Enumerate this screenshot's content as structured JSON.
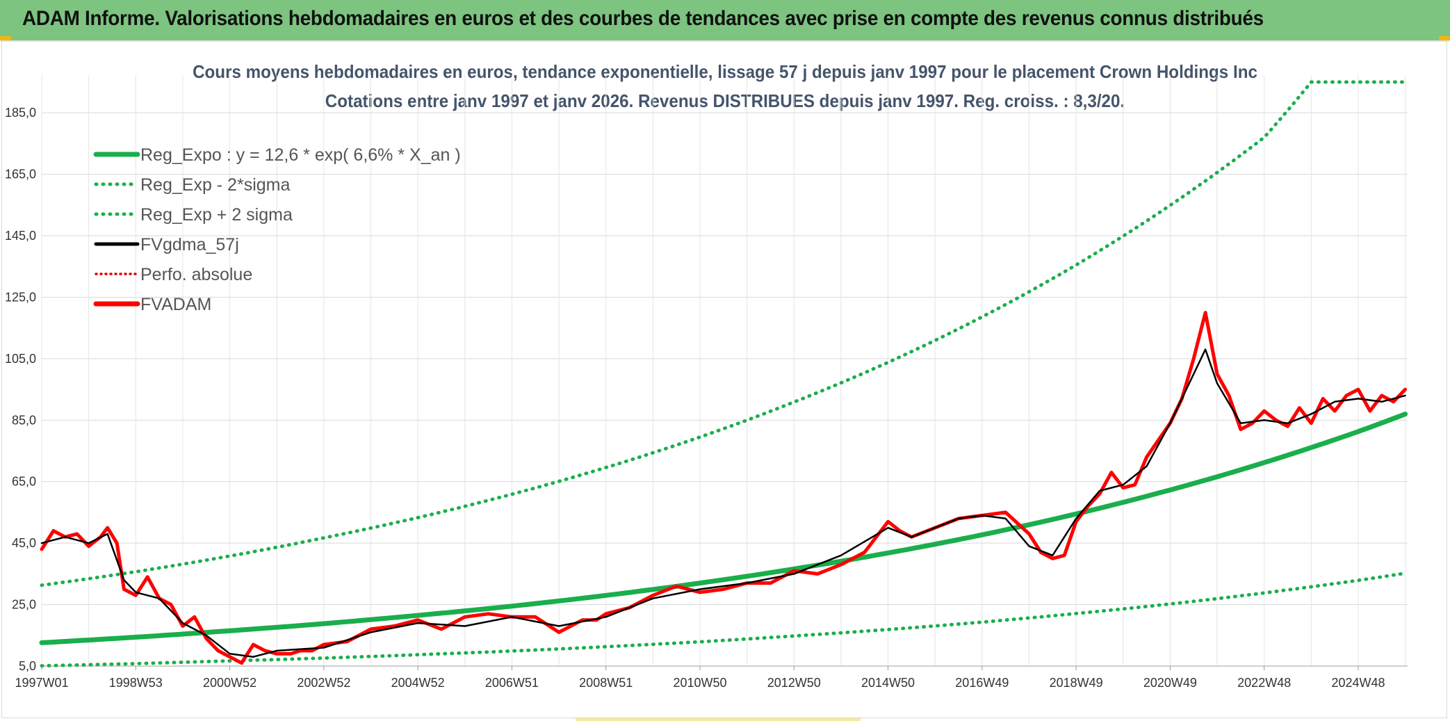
{
  "header": {
    "title": "ADAM Informe. Valorisations hebdomadaires en euros et des courbes de tendances avec prise en compte des revenus connus distribués"
  },
  "chart_data": {
    "type": "line",
    "title": "Cours moyens hebdomadaires en euros, tendance exponentielle, lissage 57 j depuis janv 1997 pour le placement Crown Holdings Inc",
    "subtitle": "Cotations entre janv 1997 et janv 2026. Revenus DISTRIBUES depuis janv 1997. Reg. croiss. : 8,3/20.",
    "xlabel": "",
    "ylabel": "",
    "ylim": [
      5,
      195
    ],
    "xlim": [
      1997.0,
      2026.05
    ],
    "y_ticks": [
      "185,0",
      "165,0",
      "145,0",
      "125,0",
      "105,0",
      "85,0",
      "65,0",
      "45,0",
      "25,0",
      "5,0"
    ],
    "y_tick_values": [
      185,
      165,
      145,
      125,
      105,
      85,
      65,
      45,
      25,
      5
    ],
    "x_ticks": [
      "1997W01",
      "1998W53",
      "2000W52",
      "2002W52",
      "2004W52",
      "2006W51",
      "2008W51",
      "2010W50",
      "2012W50",
      "2014W50",
      "2016W49",
      "2018W49",
      "2020W49",
      "2022W48",
      "2024W48"
    ],
    "x_tick_years": [
      1997.0,
      1999.0,
      2001.0,
      2003.0,
      2005.0,
      2007.0,
      2009.0,
      2011.0,
      2013.0,
      2015.0,
      2017.0,
      2019.0,
      2021.0,
      2023.0,
      2025.0
    ],
    "grid": true,
    "legend_position": "top-left",
    "legend": [
      {
        "name": "Reg_Expo : y = 12,6 * exp( 6,6% *  X_an )",
        "color": "#1aae4c",
        "style": "solid-thick"
      },
      {
        "name": "Reg_Exp - 2*sigma",
        "color": "#1aae4c",
        "style": "dotted"
      },
      {
        "name": "Reg_Exp + 2 sigma",
        "color": "#1aae4c",
        "style": "dotted"
      },
      {
        "name": "FVgdma_57j",
        "color": "#000000",
        "style": "solid"
      },
      {
        "name": "Perfo. absolue",
        "color": "#e00000",
        "style": "dotted"
      },
      {
        "name": "FVADAM",
        "color": "#ff0000",
        "style": "solid-thick"
      }
    ],
    "series": [
      {
        "name": "Reg_Expo : y = 12,6 * exp( 6,6% *  X_an )",
        "color": "#1aae4c",
        "x": [
          1997.0,
          1999.0,
          2001.0,
          2003.0,
          2005.0,
          2007.0,
          2009.0,
          2011.0,
          2013.0,
          2015.0,
          2017.0,
          2019.0,
          2021.0,
          2023.0,
          2025.0,
          2026.0
        ],
        "values": [
          12.6,
          14.4,
          16.5,
          18.8,
          21.5,
          24.5,
          28.0,
          32.0,
          36.6,
          41.8,
          47.7,
          54.5,
          62.3,
          71.2,
          81.3,
          87.0
        ]
      },
      {
        "name": "Reg_Exp - 2*sigma",
        "color": "#1aae4c",
        "x": [
          1997.0,
          1999.0,
          2001.0,
          2003.0,
          2005.0,
          2007.0,
          2009.0,
          2011.0,
          2013.0,
          2015.0,
          2017.0,
          2019.0,
          2021.0,
          2023.0,
          2025.0,
          2026.0
        ],
        "values": [
          5.1,
          5.8,
          6.7,
          7.6,
          8.7,
          9.9,
          11.3,
          12.9,
          14.8,
          16.9,
          19.3,
          22.1,
          25.2,
          28.8,
          32.9,
          35.2
        ]
      },
      {
        "name": "Reg_Exp + 2 sigma",
        "color": "#1aae4c",
        "x": [
          1997.0,
          1999.0,
          2001.0,
          2003.0,
          2005.0,
          2007.0,
          2009.0,
          2011.0,
          2013.0,
          2015.0,
          2017.0,
          2019.0,
          2021.0,
          2023.0,
          2024.0,
          2026.0
        ],
        "values": [
          31.3,
          35.7,
          40.8,
          46.7,
          53.3,
          60.9,
          69.6,
          79.5,
          90.9,
          103.8,
          118.6,
          135.5,
          154.9,
          177.0,
          195.0,
          195.0
        ]
      },
      {
        "name": "FVADAM",
        "color": "#ff0000",
        "x": [
          1997.0,
          1997.25,
          1997.5,
          1997.75,
          1998.0,
          1998.25,
          1998.4,
          1998.6,
          1998.75,
          1999.0,
          1999.25,
          1999.5,
          1999.75,
          2000.0,
          2000.25,
          2000.5,
          2000.75,
          2001.0,
          2001.25,
          2001.5,
          2001.75,
          2002.0,
          2002.3,
          2002.5,
          2002.75,
          2003.0,
          2003.5,
          2004.0,
          2004.5,
          2005.0,
          2005.5,
          2006.0,
          2006.5,
          2007.0,
          2007.5,
          2008.0,
          2008.5,
          2008.8,
          2009.0,
          2009.5,
          2010.0,
          2010.5,
          2011.0,
          2011.5,
          2012.0,
          2012.5,
          2013.0,
          2013.5,
          2014.0,
          2014.5,
          2015.0,
          2015.25,
          2015.5,
          2016.0,
          2016.5,
          2017.0,
          2017.5,
          2018.0,
          2018.25,
          2018.5,
          2018.75,
          2019.0,
          2019.25,
          2019.5,
          2019.75,
          2020.0,
          2020.25,
          2020.5,
          2021.0,
          2021.25,
          2021.5,
          2021.75,
          2022.0,
          2022.25,
          2022.5,
          2022.75,
          2023.0,
          2023.25,
          2023.5,
          2023.75,
          2024.0,
          2024.25,
          2024.5,
          2024.75,
          2025.0,
          2025.25,
          2025.5,
          2025.75,
          2026.0
        ],
        "values": [
          43,
          49,
          47,
          48,
          44,
          47,
          50,
          45,
          30,
          28,
          34,
          27,
          25,
          18,
          21,
          14,
          10,
          8,
          6,
          12,
          10,
          9,
          9,
          10,
          10,
          12,
          13,
          17,
          18,
          20,
          17,
          21,
          22,
          21,
          21,
          16,
          20,
          20,
          22,
          24,
          28,
          31,
          29,
          30,
          32,
          32,
          36,
          35,
          38,
          42,
          52,
          49,
          47,
          50,
          53,
          54,
          55,
          48,
          42,
          40,
          41,
          52,
          57,
          61,
          68,
          63,
          64,
          73,
          84,
          92,
          105,
          120,
          100,
          93,
          82,
          84,
          88,
          85,
          83,
          89,
          84,
          92,
          88,
          93,
          95,
          88,
          93,
          91,
          95
        ]
      },
      {
        "name": "FVgdma_57j",
        "color": "#000000",
        "x": [
          1997.0,
          1997.5,
          1998.0,
          1998.4,
          1998.75,
          1999.0,
          1999.5,
          2000.0,
          2000.5,
          2001.0,
          2001.5,
          2002.0,
          2003.0,
          2004.0,
          2005.0,
          2006.0,
          2007.0,
          2008.0,
          2009.0,
          2010.0,
          2011.0,
          2012.0,
          2013.0,
          2014.0,
          2015.0,
          2015.5,
          2016.0,
          2016.5,
          2017.0,
          2017.5,
          2018.0,
          2018.5,
          2019.0,
          2019.5,
          2020.0,
          2020.5,
          2021.0,
          2021.5,
          2021.75,
          2022.0,
          2022.5,
          2023.0,
          2023.5,
          2024.0,
          2024.5,
          2025.0,
          2025.5,
          2026.0
        ],
        "values": [
          45,
          47,
          45,
          48,
          33,
          29,
          27,
          19,
          15,
          9,
          8,
          10,
          11,
          16,
          19,
          18,
          21,
          18,
          21,
          27,
          30,
          32,
          35,
          41,
          50,
          47,
          50,
          53,
          54,
          53,
          44,
          41,
          53,
          62,
          64,
          70,
          84,
          100,
          108,
          97,
          84,
          85,
          84,
          87,
          91,
          92,
          91,
          93
        ]
      },
      {
        "name": "Perfo. absolue",
        "color": "#e00000",
        "x": [],
        "values": []
      }
    ]
  }
}
